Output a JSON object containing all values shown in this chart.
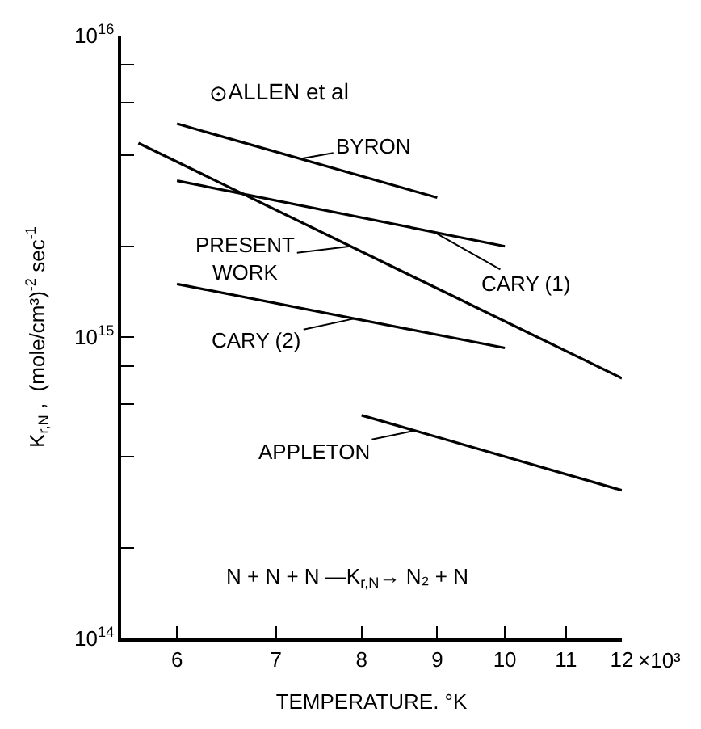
{
  "chart_data": {
    "type": "line",
    "xlabel": "TEMPERATURE. °K",
    "ylabel": "K$_{r,N}$ ,  (mole/cm³)$^{-2}$ sec$^{-1}$",
    "log": "xy",
    "legend": false,
    "line_style": "solid",
    "marker": "none",
    "xlim": [
      5.5,
      12
    ],
    "xticks": [
      6,
      7,
      8,
      9,
      10,
      11,
      12
    ],
    "ylim": [
      100000000000000.0,
      1e+16
    ],
    "yticks": [
      {
        "value": 100000000000000.0,
        "label": "10$^{14}$"
      },
      {
        "value": 200000000000000.0,
        "label": null
      },
      {
        "value": 400000000000000.0,
        "label": null
      },
      {
        "value": 600000000000000.0,
        "label": null
      },
      {
        "value": 800000000000000.0,
        "label": null
      },
      {
        "value": 1000000000000000.0,
        "label": "10$^{15}$"
      },
      {
        "value": 2000000000000000.0,
        "label": null
      },
      {
        "value": 4000000000000000.0,
        "label": null
      },
      {
        "value": 6000000000000000.0,
        "label": null
      },
      {
        "value": 8000000000000000.0,
        "label": null
      },
      {
        "value": 1e+16,
        "label": "10$^{16}$"
      }
    ],
    "series": [
      {
        "color": "#000000",
        "x": [
          6,
          9
        ],
        "values": [
          5100000000000000.0,
          2900000000000000.0
        ]
      },
      {
        "color": "#000000",
        "x": [
          5.65,
          12
        ],
        "values": [
          4400000000000000.0,
          730000000000000.0
        ]
      },
      {
        "color": "#000000",
        "x": [
          6,
          10
        ],
        "values": [
          3300000000000000.0,
          2000000000000000.0
        ]
      },
      {
        "color": "#000000",
        "x": [
          6,
          10
        ],
        "values": [
          1500000000000000.0,
          920000000000000.0
        ]
      },
      {
        "color": "#000000",
        "x": [
          8,
          12
        ],
        "values": [
          550000000000000.0,
          310000000000000.0
        ]
      },
      {
        "name": "ALLEN et al",
        "type": "scatter",
        "marker": "circle",
        "color": "#000000",
        "x": [
          6.4
        ],
        "values": [
          6400000000000000.0
        ]
      }
    ],
    "annotations": [
      {
        "text": "BYRON",
        "x": 7.27,
        "y": 3900000000000000.0
      },
      {
        "text": "PRESENT\nWORK",
        "x": 7.86,
        "y": 2000000000000000.0
      },
      {
        "text": "CARY (1)",
        "x": 9.0,
        "y": 2200000000000000.0
      },
      {
        "text": "CARY (2)",
        "x": 7.9,
        "y": 1150000000000000.0
      },
      {
        "text": "APPLETON",
        "x": 8.7,
        "y": 490000000000000.0
      },
      "N + N + N —K$_{r,N}$→ N₂ + N",
      "×10³"
    ]
  }
}
